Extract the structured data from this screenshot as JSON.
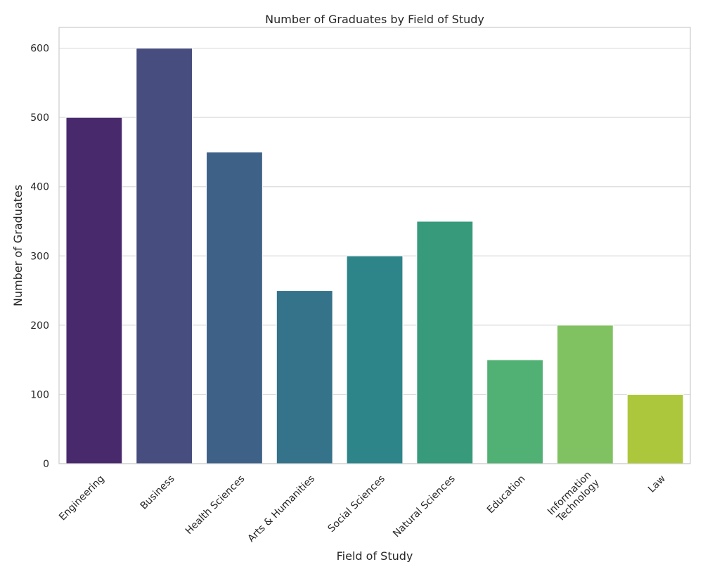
{
  "chart_data": {
    "type": "bar",
    "title": "Number of Graduates by Field of Study",
    "xlabel": "Field of Study",
    "ylabel": "Number of Graduates",
    "categories": [
      "Engineering",
      "Business",
      "Health Sciences",
      "Arts & Humanities",
      "Social Sciences",
      "Natural Sciences",
      "Education",
      "Information\nTechnology",
      "Law"
    ],
    "values": [
      500,
      600,
      450,
      250,
      300,
      350,
      150,
      200,
      100
    ],
    "colors": [
      "#482a6c",
      "#474d7e",
      "#3e6187",
      "#35738a",
      "#2d858a",
      "#369a7b",
      "#51b074",
      "#80c261",
      "#adc73c"
    ],
    "ylim": [
      0,
      630
    ],
    "yticks": [
      0,
      100,
      200,
      300,
      400,
      500,
      600
    ],
    "grid": "horizontal",
    "legend": "none"
  }
}
